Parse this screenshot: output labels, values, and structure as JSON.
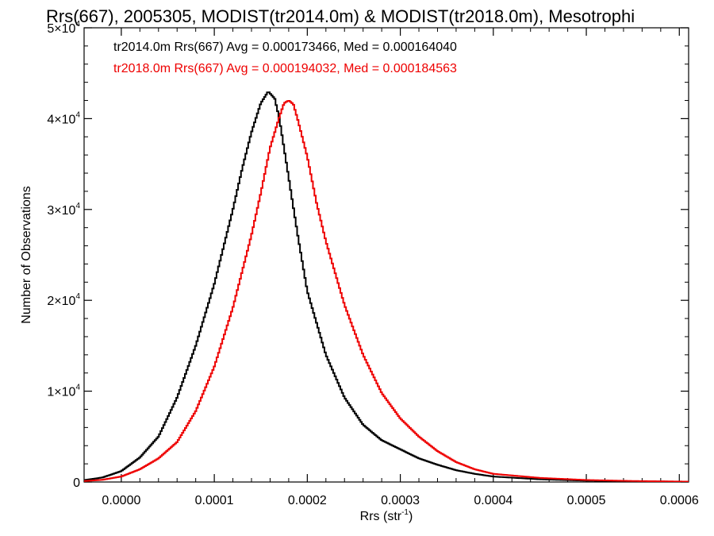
{
  "chart_data": {
    "type": "line",
    "title": "Rrs(667), 2005305, MODIST(tr2014.0m) & MODIST(tr2018.0m), Mesotrophi",
    "xlabel_main": "Rrs (str",
    "xlabel_sup": "-1",
    "xlabel_close": ")",
    "ylabel": "Number of Observations",
    "xlim": [
      -4e-05,
      0.00061
    ],
    "ylim": [
      0,
      50000
    ],
    "x_ticks": [
      0.0,
      0.0001,
      0.0002,
      0.0003,
      0.0004,
      0.0005,
      0.0006
    ],
    "x_tick_labels": [
      "0.0000",
      "0.0001",
      "0.0002",
      "0.0003",
      "0.0004",
      "0.0005",
      "0.0006"
    ],
    "y_ticks": [
      {
        "value": 0,
        "label": "0",
        "sup": ""
      },
      {
        "value": 10000,
        "label": "1×10",
        "sup": "4"
      },
      {
        "value": 20000,
        "label": "2×10",
        "sup": "4"
      },
      {
        "value": 30000,
        "label": "3×10",
        "sup": "4"
      },
      {
        "value": 40000,
        "label": "4×10",
        "sup": "4"
      },
      {
        "value": 50000,
        "label": "5×10",
        "sup": "4"
      }
    ],
    "grid": false,
    "legend_position": "top-left",
    "series": [
      {
        "name": "tr2014.0m",
        "color": "#000000",
        "legend": "tr2014.0m Rrs(667) Avg = 0.000173466, Med = 0.000164040",
        "x": [
          -4e-05,
          -2e-05,
          0.0,
          2e-05,
          4e-05,
          6e-05,
          8e-05,
          0.0001,
          0.00012,
          0.00013,
          0.00014,
          0.00015,
          0.000158,
          0.000165,
          0.00017,
          0.00018,
          0.00019,
          0.0002,
          0.00022,
          0.00024,
          0.00026,
          0.00028,
          0.0003,
          0.00032,
          0.00034,
          0.00036,
          0.00038,
          0.0004,
          0.00045,
          0.0005,
          0.00055,
          0.00061
        ],
        "y": [
          200,
          500,
          1200,
          2700,
          5000,
          9300,
          15000,
          21800,
          30000,
          34500,
          38500,
          41700,
          43000,
          42200,
          40000,
          33500,
          27000,
          21000,
          14000,
          9300,
          6300,
          4600,
          3600,
          2600,
          1900,
          1300,
          900,
          600,
          300,
          150,
          80,
          30
        ]
      },
      {
        "name": "tr2018.0m",
        "color": "#ee0000",
        "legend": "tr2018.0m Rrs(667) Avg = 0.000194032, Med = 0.000184563",
        "x": [
          -4e-05,
          -2e-05,
          0.0,
          2e-05,
          4e-05,
          6e-05,
          8e-05,
          0.0001,
          0.00012,
          0.00014,
          0.00015,
          0.00016,
          0.00017,
          0.000175,
          0.00018,
          0.000185,
          0.00019,
          0.0002,
          0.00021,
          0.00022,
          0.00024,
          0.00026,
          0.00028,
          0.0003,
          0.00032,
          0.00034,
          0.00036,
          0.00038,
          0.0004,
          0.00045,
          0.0005,
          0.00055,
          0.00061
        ],
        "y": [
          100,
          250,
          600,
          1400,
          2600,
          4400,
          7800,
          12700,
          19200,
          27200,
          31800,
          36800,
          40200,
          41700,
          42000,
          41600,
          39800,
          35800,
          30700,
          26500,
          19500,
          14000,
          9800,
          7000,
          5000,
          3400,
          2200,
          1400,
          900,
          450,
          220,
          110,
          40
        ]
      }
    ]
  }
}
